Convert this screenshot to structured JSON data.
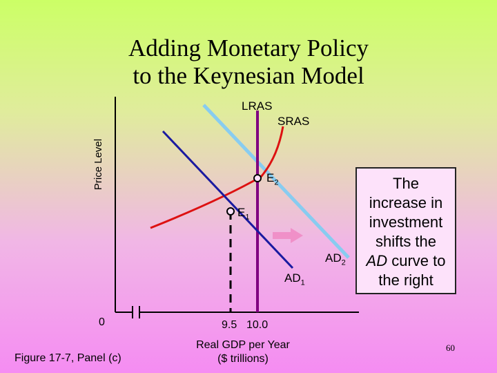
{
  "title": {
    "line1": "Adding Monetary Policy",
    "line2": "to the Keynesian Model"
  },
  "labels": {
    "lras": "LRAS",
    "sras": "SRAS",
    "e2_main": "E",
    "e2_sub": "2",
    "e1_main": "E",
    "e1_sub": "1",
    "ad2_main": "AD",
    "ad2_sub": "2",
    "ad1_main": "AD",
    "ad1_sub": "1",
    "y_axis": "Price Level",
    "origin": "0",
    "x_tick_1": "9.5",
    "x_tick_2": "10.0",
    "x_axis_line1": "Real GDP per Year",
    "x_axis_line2": "($ trillions)",
    "figure": "Figure 17-7, Panel (c)"
  },
  "callout": {
    "line1": "The",
    "line2": "increase in",
    "line3": "investment",
    "line4": "shifts the",
    "line5_em": "AD",
    "line5_rest": " curve to",
    "line6": "the right"
  },
  "page_number": "60",
  "colors": {
    "lras": "#800080",
    "sras": "#dd1111",
    "ad1": "#1a1aa0",
    "ad2": "#88ccf0",
    "arrow": "#f090c8"
  }
}
